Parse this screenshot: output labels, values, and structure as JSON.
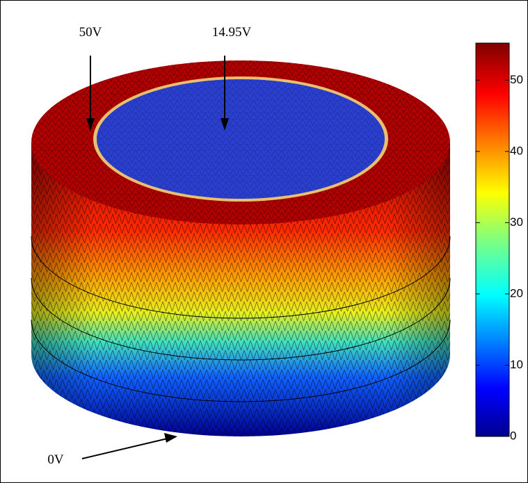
{
  "annotations": [
    "50V",
    "14.95V",
    "0V"
  ],
  "colorbar": {
    "lim": [
      0,
      55.2
    ],
    "ticks": [
      0,
      10,
      20,
      30,
      40,
      50
    ]
  }
}
